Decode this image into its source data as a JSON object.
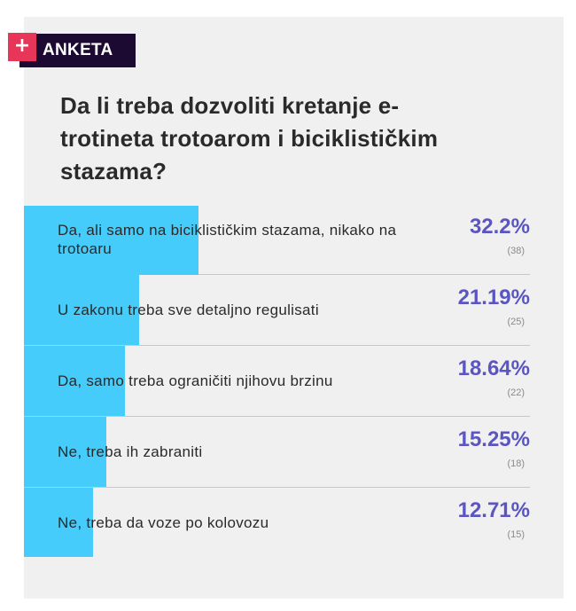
{
  "badge": {
    "icon": "plus-icon",
    "plus_symbol": "+",
    "label": "ANKETA",
    "colors": {
      "plus_bg": "#e8365a",
      "label_bg": "#1d0a32"
    }
  },
  "poll": {
    "question": "Da li treba dozvoliti kretanje e-trotineta trotoarom i biciklističkim stazama?",
    "bar_color": "#45ccfa",
    "percent_color": "#5b55c2",
    "options": [
      {
        "label": "Da, ali samo na biciklističkim stazama, nikako na trotoaru",
        "percent": 32.2,
        "percent_label": "32.2%",
        "votes": "(38)"
      },
      {
        "label": "U zakonu treba sve detaljno regulisati",
        "percent": 21.19,
        "percent_label": "21.19%",
        "votes": "(25)"
      },
      {
        "label": "Da, samo treba ograničiti njihovu brzinu",
        "percent": 18.64,
        "percent_label": "18.64%",
        "votes": "(22)"
      },
      {
        "label": "Ne, treba ih zabraniti",
        "percent": 15.25,
        "percent_label": "15.25%",
        "votes": "(18)"
      },
      {
        "label": "Ne, treba da voze po kolovozu",
        "percent": 12.71,
        "percent_label": "12.71%",
        "votes": "(15)"
      }
    ]
  }
}
